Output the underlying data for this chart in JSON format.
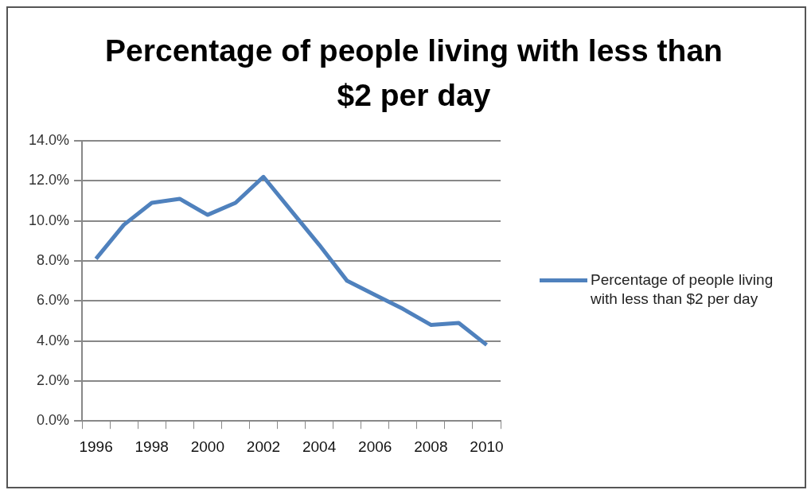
{
  "chart_data": {
    "type": "line",
    "title": "Percentage of people living with less than $2 per day",
    "categories": [
      "1996",
      null,
      "1998",
      null,
      "2000",
      null,
      "2002",
      null,
      "2004",
      null,
      "2006",
      null,
      "2008",
      null,
      "2010"
    ],
    "series": [
      {
        "name": "Percentage of people living with  less than $2 per day",
        "color": "#4f81bd",
        "values": [
          8.1,
          9.8,
          10.9,
          11.1,
          10.3,
          10.9,
          12.2,
          10.5,
          8.8,
          7.0,
          6.3,
          5.6,
          4.8,
          4.9,
          3.8
        ]
      }
    ],
    "ylim": [
      0,
      14
    ],
    "yticks": [
      {
        "value": 0,
        "label": "0.0%"
      },
      {
        "value": 2,
        "label": "2.0%"
      },
      {
        "value": 4,
        "label": "4.0%"
      },
      {
        "value": 6,
        "label": "6.0%"
      },
      {
        "value": 8,
        "label": "8.0%"
      },
      {
        "value": 10,
        "label": "10.0%"
      },
      {
        "value": 12,
        "label": "12.0%"
      },
      {
        "value": 14,
        "label": "14.0%"
      }
    ],
    "grid": "y",
    "legend": "right",
    "marker": "none",
    "line_style": "solid"
  }
}
